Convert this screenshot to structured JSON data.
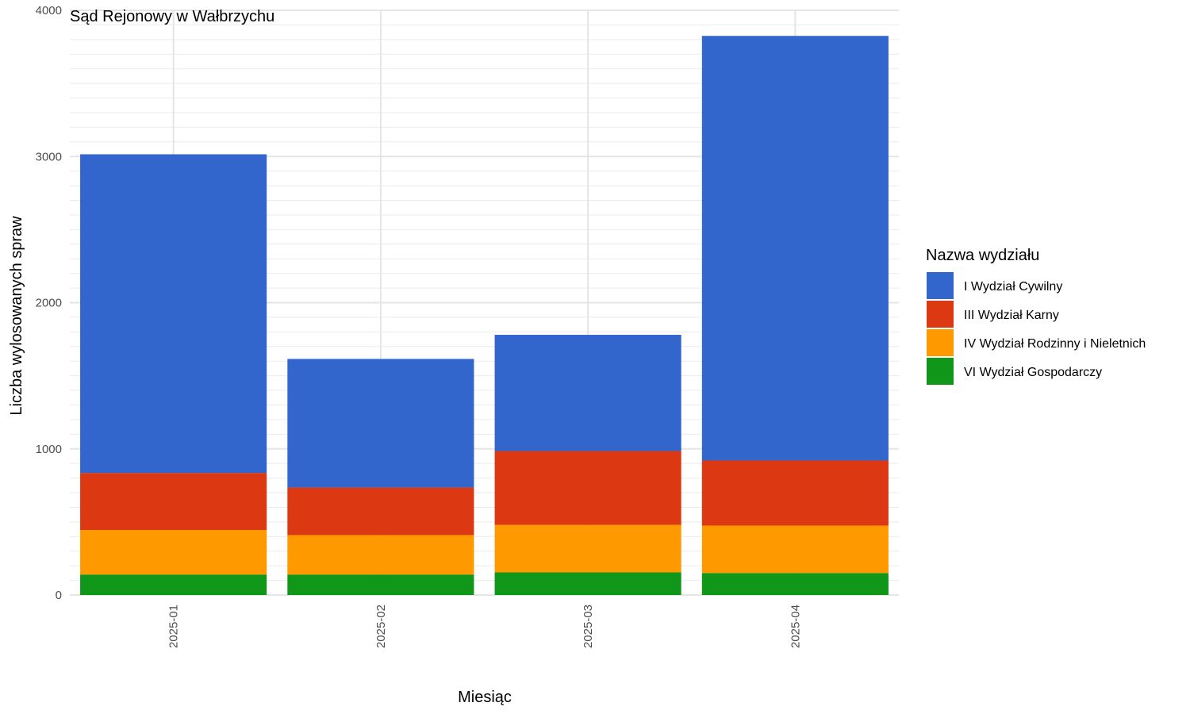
{
  "chart_data": {
    "type": "bar",
    "stacked": true,
    "title": "Sąd Rejonowy w Wałbrzychu",
    "xlabel": "Miesiąc",
    "ylabel": "Liczba wylosowanych spraw",
    "ylim": [
      0,
      4000
    ],
    "yticks": [
      0,
      1000,
      2000,
      3000,
      4000
    ],
    "grid": true,
    "legend_position": "right",
    "legend_title": "Nazwa wydziału",
    "categories": [
      "2025-01",
      "2025-02",
      "2025-03",
      "2025-04"
    ],
    "series": [
      {
        "name": "I Wydział Cywilny",
        "color": "#3366cc",
        "values": [
          2180,
          880,
          795,
          2905
        ]
      },
      {
        "name": "III Wydział Karny",
        "color": "#dc3912",
        "values": [
          390,
          325,
          505,
          445
        ]
      },
      {
        "name": "IV Wydział Rodzinny i Nieletnich",
        "color": "#ff9900",
        "values": [
          305,
          270,
          325,
          325
        ]
      },
      {
        "name": "VI Wydział Gospodarczy",
        "color": "#109618",
        "values": [
          140,
          140,
          155,
          150
        ]
      }
    ]
  }
}
